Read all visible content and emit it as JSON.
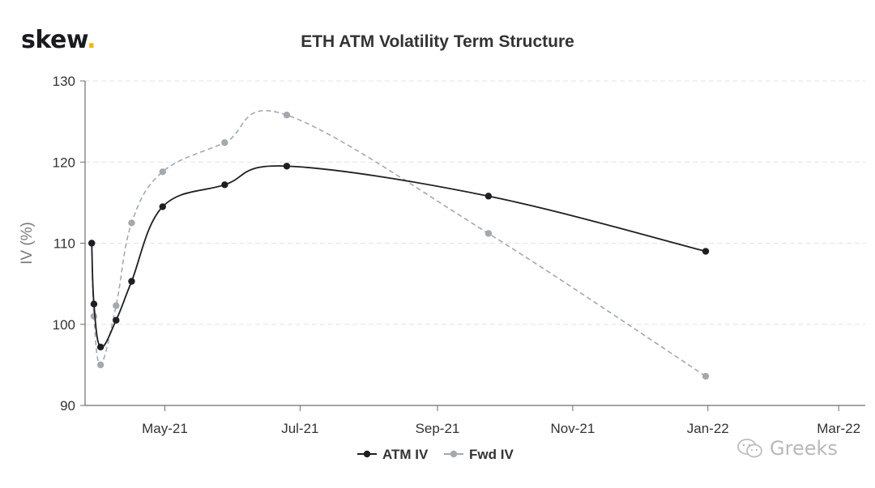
{
  "logo": {
    "text": "skew",
    "dot": "."
  },
  "watermark": {
    "text": "Greeks",
    "icon": "wechat-icon"
  },
  "colors": {
    "atm": "#1e1e24",
    "fwd": "#a3a9ae",
    "axis": "#6e6e6e",
    "grid": "#e3e3e3",
    "logo_dot": "#f2b705"
  },
  "chart_data": {
    "type": "line",
    "title": "ETH ATM Volatility Term Structure",
    "xlabel": "",
    "ylabel": "IV (%)",
    "ylim": [
      90,
      130
    ],
    "xlim": [
      "2021-03-26",
      "2022-03-13"
    ],
    "yticks": [
      90,
      100,
      110,
      120,
      130
    ],
    "xticks": [
      {
        "label": "May-21",
        "date": "2021-05-01"
      },
      {
        "label": "Jul-21",
        "date": "2021-07-01"
      },
      {
        "label": "Sep-21",
        "date": "2021-09-01"
      },
      {
        "label": "Nov-21",
        "date": "2021-11-01"
      },
      {
        "label": "Jan-22",
        "date": "2022-01-01"
      },
      {
        "label": "Mar-22",
        "date": "2022-03-01"
      }
    ],
    "grid": true,
    "legend": "bottom-center",
    "series": [
      {
        "name": "ATM IV",
        "style": "solid",
        "points": [
          {
            "x": "2021-03-29",
            "y": 110.0
          },
          {
            "x": "2021-03-30",
            "y": 102.5
          },
          {
            "x": "2021-04-02",
            "y": 97.2
          },
          {
            "x": "2021-04-09",
            "y": 100.5
          },
          {
            "x": "2021-04-16",
            "y": 105.3
          },
          {
            "x": "2021-04-30",
            "y": 114.5
          },
          {
            "x": "2021-05-28",
            "y": 117.2
          },
          {
            "x": "2021-06-25",
            "y": 119.5
          },
          {
            "x": "2021-09-24",
            "y": 115.8
          },
          {
            "x": "2021-12-31",
            "y": 109.0
          }
        ]
      },
      {
        "name": "Fwd IV",
        "style": "dashed",
        "points": [
          {
            "x": "2021-03-29",
            "y": 110.0
          },
          {
            "x": "2021-03-30",
            "y": 101.0
          },
          {
            "x": "2021-04-02",
            "y": 95.0
          },
          {
            "x": "2021-04-09",
            "y": 102.3
          },
          {
            "x": "2021-04-16",
            "y": 112.5
          },
          {
            "x": "2021-04-30",
            "y": 118.8
          },
          {
            "x": "2021-05-28",
            "y": 122.4
          },
          {
            "x": "2021-06-25",
            "y": 125.8
          },
          {
            "x": "2021-09-24",
            "y": 111.2
          },
          {
            "x": "2021-12-31",
            "y": 93.6
          }
        ]
      }
    ]
  }
}
